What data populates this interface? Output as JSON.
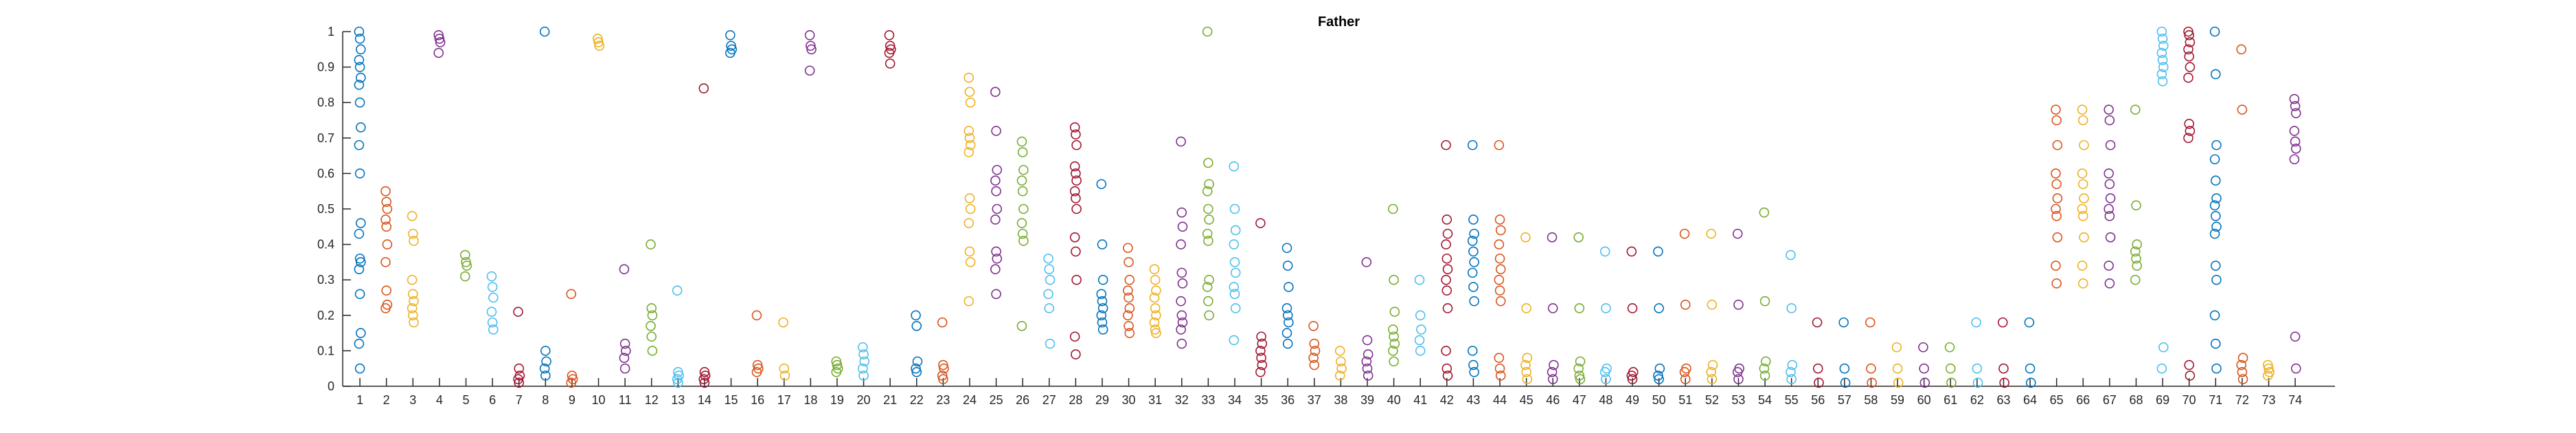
{
  "chart_data": {
    "type": "scatter",
    "title": "Father",
    "xlabel": "",
    "ylabel": "",
    "xlim": [
      0,
      74
    ],
    "ylim": [
      0,
      1
    ],
    "y_ticks": [
      "0",
      "0.1",
      "0.2",
      "0.3",
      "0.4",
      "0.5",
      "0.6",
      "0.7",
      "0.8",
      "0.9",
      "1"
    ],
    "x_ticks": [
      "1",
      "2",
      "3",
      "4",
      "5",
      "6",
      "7",
      "8",
      "9",
      "10",
      "11",
      "12",
      "13",
      "14",
      "15",
      "16",
      "17",
      "18",
      "19",
      "20",
      "21",
      "22",
      "23",
      "24",
      "25",
      "26",
      "27",
      "28",
      "29",
      "30",
      "31",
      "32",
      "33",
      "34",
      "35",
      "36",
      "37",
      "38",
      "39",
      "40",
      "41",
      "42",
      "43",
      "44",
      "45",
      "46",
      "47",
      "48",
      "49",
      "50",
      "51",
      "52",
      "53",
      "54",
      "55",
      "56",
      "57",
      "58",
      "59",
      "60",
      "61",
      "62",
      "63",
      "64",
      "65",
      "66",
      "67",
      "68",
      "69",
      "70",
      "71",
      "72",
      "73",
      "74"
    ],
    "grid": false,
    "marker": "open-circle",
    "colors": [
      "#0072BD",
      "#D95319",
      "#EDB120",
      "#7E2F8E",
      "#77AC30",
      "#4DBEEE",
      "#A2142F"
    ],
    "groups": [
      {
        "x": 1,
        "values": [
          1.0,
          0.98,
          0.95,
          0.92,
          0.9,
          0.87,
          0.85,
          0.8,
          0.73,
          0.68,
          0.6,
          0.46,
          0.43,
          0.36,
          0.35,
          0.33,
          0.26,
          0.15,
          0.12,
          0.05
        ]
      },
      {
        "x": 2,
        "values": [
          0.55,
          0.52,
          0.5,
          0.47,
          0.45,
          0.4,
          0.35,
          0.27,
          0.23,
          0.22
        ]
      },
      {
        "x": 3,
        "values": [
          0.48,
          0.43,
          0.41,
          0.3,
          0.26,
          0.24,
          0.22,
          0.2,
          0.18
        ]
      },
      {
        "x": 4,
        "values": [
          0.99,
          0.98,
          0.97,
          0.94
        ]
      },
      {
        "x": 5,
        "values": [
          0.37,
          0.35,
          0.34,
          0.31
        ]
      },
      {
        "x": 6,
        "values": [
          0.31,
          0.28,
          0.25,
          0.21,
          0.18,
          0.16
        ]
      },
      {
        "x": 7,
        "values": [
          0.21,
          0.05,
          0.03,
          0.02,
          0.01
        ]
      },
      {
        "x": 8,
        "values": [
          1.0,
          0.1,
          0.07,
          0.05,
          0.03
        ]
      },
      {
        "x": 9,
        "values": [
          0.26,
          0.03,
          0.02,
          0.01
        ]
      },
      {
        "x": 10,
        "values": [
          0.98,
          0.97,
          0.96
        ]
      },
      {
        "x": 11,
        "values": [
          0.33,
          0.12,
          0.1,
          0.08,
          0.05
        ]
      },
      {
        "x": 12,
        "values": [
          0.4,
          0.22,
          0.2,
          0.17,
          0.14,
          0.1
        ]
      },
      {
        "x": 13,
        "values": [
          0.27,
          0.04,
          0.03,
          0.02,
          0.01
        ]
      },
      {
        "x": 14,
        "values": [
          0.84,
          0.04,
          0.03,
          0.02,
          0.01
        ]
      },
      {
        "x": 15,
        "values": [
          0.99,
          0.96,
          0.95,
          0.94
        ]
      },
      {
        "x": 16,
        "values": [
          0.2,
          0.06,
          0.05,
          0.04
        ]
      },
      {
        "x": 17,
        "values": [
          0.18,
          0.05,
          0.03
        ]
      },
      {
        "x": 18,
        "values": [
          0.99,
          0.96,
          0.95,
          0.89
        ]
      },
      {
        "x": 19,
        "values": [
          0.07,
          0.06,
          0.05,
          0.04
        ]
      },
      {
        "x": 20,
        "values": [
          0.11,
          0.09,
          0.07,
          0.05,
          0.03
        ]
      },
      {
        "x": 21,
        "values": [
          0.99,
          0.96,
          0.95,
          0.94,
          0.91
        ]
      },
      {
        "x": 22,
        "values": [
          0.2,
          0.17,
          0.07,
          0.05,
          0.04
        ]
      },
      {
        "x": 23,
        "values": [
          0.18,
          0.06,
          0.05,
          0.03,
          0.02
        ]
      },
      {
        "x": 24,
        "values": [
          0.87,
          0.83,
          0.8,
          0.72,
          0.7,
          0.68,
          0.66,
          0.53,
          0.5,
          0.46,
          0.38,
          0.35,
          0.24
        ]
      },
      {
        "x": 25,
        "values": [
          0.83,
          0.72,
          0.61,
          0.58,
          0.55,
          0.5,
          0.47,
          0.38,
          0.36,
          0.33,
          0.26
        ]
      },
      {
        "x": 26,
        "values": [
          0.69,
          0.66,
          0.61,
          0.58,
          0.55,
          0.5,
          0.46,
          0.43,
          0.41,
          0.17
        ]
      },
      {
        "x": 27,
        "values": [
          0.36,
          0.33,
          0.3,
          0.26,
          0.22,
          0.12
        ]
      },
      {
        "x": 28,
        "values": [
          0.73,
          0.71,
          0.68,
          0.62,
          0.6,
          0.58,
          0.55,
          0.53,
          0.5,
          0.42,
          0.38,
          0.3,
          0.14,
          0.09
        ]
      },
      {
        "x": 29,
        "values": [
          0.57,
          0.4,
          0.3,
          0.26,
          0.24,
          0.22,
          0.2,
          0.18,
          0.16
        ]
      },
      {
        "x": 30,
        "values": [
          0.39,
          0.35,
          0.3,
          0.27,
          0.25,
          0.22,
          0.2,
          0.17,
          0.15
        ]
      },
      {
        "x": 31,
        "values": [
          0.33,
          0.3,
          0.27,
          0.25,
          0.22,
          0.2,
          0.18,
          0.16,
          0.15
        ]
      },
      {
        "x": 32,
        "values": [
          0.69,
          0.49,
          0.45,
          0.4,
          0.32,
          0.29,
          0.24,
          0.2,
          0.18,
          0.16,
          0.12
        ]
      },
      {
        "x": 33,
        "values": [
          1.0,
          0.63,
          0.57,
          0.55,
          0.5,
          0.47,
          0.43,
          0.41,
          0.3,
          0.28,
          0.24,
          0.2
        ]
      },
      {
        "x": 34,
        "values": [
          0.62,
          0.5,
          0.44,
          0.4,
          0.35,
          0.32,
          0.28,
          0.26,
          0.22,
          0.13
        ]
      },
      {
        "x": 35,
        "values": [
          0.46,
          0.14,
          0.12,
          0.1,
          0.08,
          0.06,
          0.04
        ]
      },
      {
        "x": 36,
        "values": [
          0.39,
          0.34,
          0.28,
          0.22,
          0.2,
          0.18,
          0.15,
          0.12
        ]
      },
      {
        "x": 37,
        "values": [
          0.17,
          0.12,
          0.1,
          0.08,
          0.06
        ]
      },
      {
        "x": 38,
        "values": [
          0.1,
          0.07,
          0.05,
          0.03
        ]
      },
      {
        "x": 39,
        "values": [
          0.35,
          0.13,
          0.09,
          0.07,
          0.05,
          0.03
        ]
      },
      {
        "x": 40,
        "values": [
          0.5,
          0.3,
          0.21,
          0.16,
          0.14,
          0.12,
          0.1,
          0.07
        ]
      },
      {
        "x": 41,
        "values": [
          0.3,
          0.2,
          0.16,
          0.13,
          0.1
        ]
      },
      {
        "x": 42,
        "values": [
          0.68,
          0.47,
          0.43,
          0.4,
          0.36,
          0.33,
          0.3,
          0.27,
          0.22,
          0.1,
          0.05,
          0.03
        ]
      },
      {
        "x": 43,
        "values": [
          0.68,
          0.47,
          0.43,
          0.41,
          0.38,
          0.35,
          0.32,
          0.28,
          0.24,
          0.1,
          0.06,
          0.04
        ]
      },
      {
        "x": 44,
        "values": [
          0.68,
          0.47,
          0.44,
          0.4,
          0.36,
          0.33,
          0.3,
          0.27,
          0.24,
          0.08,
          0.05,
          0.03
        ]
      },
      {
        "x": 45,
        "values": [
          0.42,
          0.22,
          0.08,
          0.06,
          0.04,
          0.02
        ]
      },
      {
        "x": 46,
        "values": [
          0.42,
          0.22,
          0.06,
          0.04,
          0.02
        ]
      },
      {
        "x": 47,
        "values": [
          0.42,
          0.22,
          0.07,
          0.05,
          0.03,
          0.02
        ]
      },
      {
        "x": 48,
        "values": [
          0.38,
          0.22,
          0.05,
          0.04,
          0.02
        ]
      },
      {
        "x": 49,
        "values": [
          0.38,
          0.22,
          0.04,
          0.03,
          0.02
        ]
      },
      {
        "x": 50,
        "values": [
          0.38,
          0.22,
          0.05,
          0.03,
          0.02
        ]
      },
      {
        "x": 51,
        "values": [
          0.43,
          0.23,
          0.05,
          0.04,
          0.02
        ]
      },
      {
        "x": 52,
        "values": [
          0.43,
          0.23,
          0.06,
          0.04,
          0.02
        ]
      },
      {
        "x": 53,
        "values": [
          0.43,
          0.23,
          0.05,
          0.04,
          0.02
        ]
      },
      {
        "x": 54,
        "values": [
          0.49,
          0.24,
          0.07,
          0.05,
          0.03
        ]
      },
      {
        "x": 55,
        "values": [
          0.37,
          0.22,
          0.06,
          0.04,
          0.02
        ]
      },
      {
        "x": 56,
        "values": [
          0.18,
          0.05,
          0.01
        ]
      },
      {
        "x": 57,
        "values": [
          0.18,
          0.05,
          0.01
        ]
      },
      {
        "x": 58,
        "values": [
          0.18,
          0.05,
          0.01
        ]
      },
      {
        "x": 59,
        "values": [
          0.11,
          0.05,
          0.01
        ]
      },
      {
        "x": 60,
        "values": [
          0.11,
          0.05,
          0.01
        ]
      },
      {
        "x": 61,
        "values": [
          0.11,
          0.05,
          0.01
        ]
      },
      {
        "x": 62,
        "values": [
          0.18,
          0.05,
          0.01
        ]
      },
      {
        "x": 63,
        "values": [
          0.18,
          0.05,
          0.01
        ]
      },
      {
        "x": 64,
        "values": [
          0.18,
          0.05,
          0.01
        ]
      },
      {
        "x": 65,
        "values": [
          0.78,
          0.75,
          0.68,
          0.6,
          0.57,
          0.53,
          0.5,
          0.48,
          0.42,
          0.34,
          0.29
        ]
      },
      {
        "x": 66,
        "values": [
          0.78,
          0.75,
          0.68,
          0.6,
          0.57,
          0.53,
          0.5,
          0.48,
          0.42,
          0.34,
          0.29
        ]
      },
      {
        "x": 67,
        "values": [
          0.78,
          0.75,
          0.68,
          0.6,
          0.57,
          0.53,
          0.5,
          0.48,
          0.42,
          0.34,
          0.29
        ]
      },
      {
        "x": 68,
        "values": [
          0.78,
          0.51,
          0.4,
          0.38,
          0.36,
          0.34,
          0.3
        ]
      },
      {
        "x": 69,
        "values": [
          1.0,
          0.98,
          0.96,
          0.94,
          0.92,
          0.9,
          0.88,
          0.86,
          0.11,
          0.05
        ]
      },
      {
        "x": 70,
        "values": [
          1.0,
          0.99,
          0.97,
          0.95,
          0.93,
          0.9,
          0.87,
          0.74,
          0.72,
          0.7,
          0.06,
          0.03
        ]
      },
      {
        "x": 71,
        "values": [
          1.0,
          0.88,
          0.68,
          0.64,
          0.58,
          0.53,
          0.51,
          0.48,
          0.45,
          0.43,
          0.34,
          0.3,
          0.2,
          0.12,
          0.05
        ]
      },
      {
        "x": 72,
        "values": [
          0.95,
          0.78,
          0.08,
          0.06,
          0.04,
          0.02
        ]
      },
      {
        "x": 73,
        "values": [
          0.06,
          0.05,
          0.04,
          0.03
        ]
      },
      {
        "x": 74,
        "values": [
          0.81,
          0.79,
          0.77,
          0.72,
          0.69,
          0.67,
          0.64,
          0.14,
          0.05
        ]
      }
    ]
  }
}
